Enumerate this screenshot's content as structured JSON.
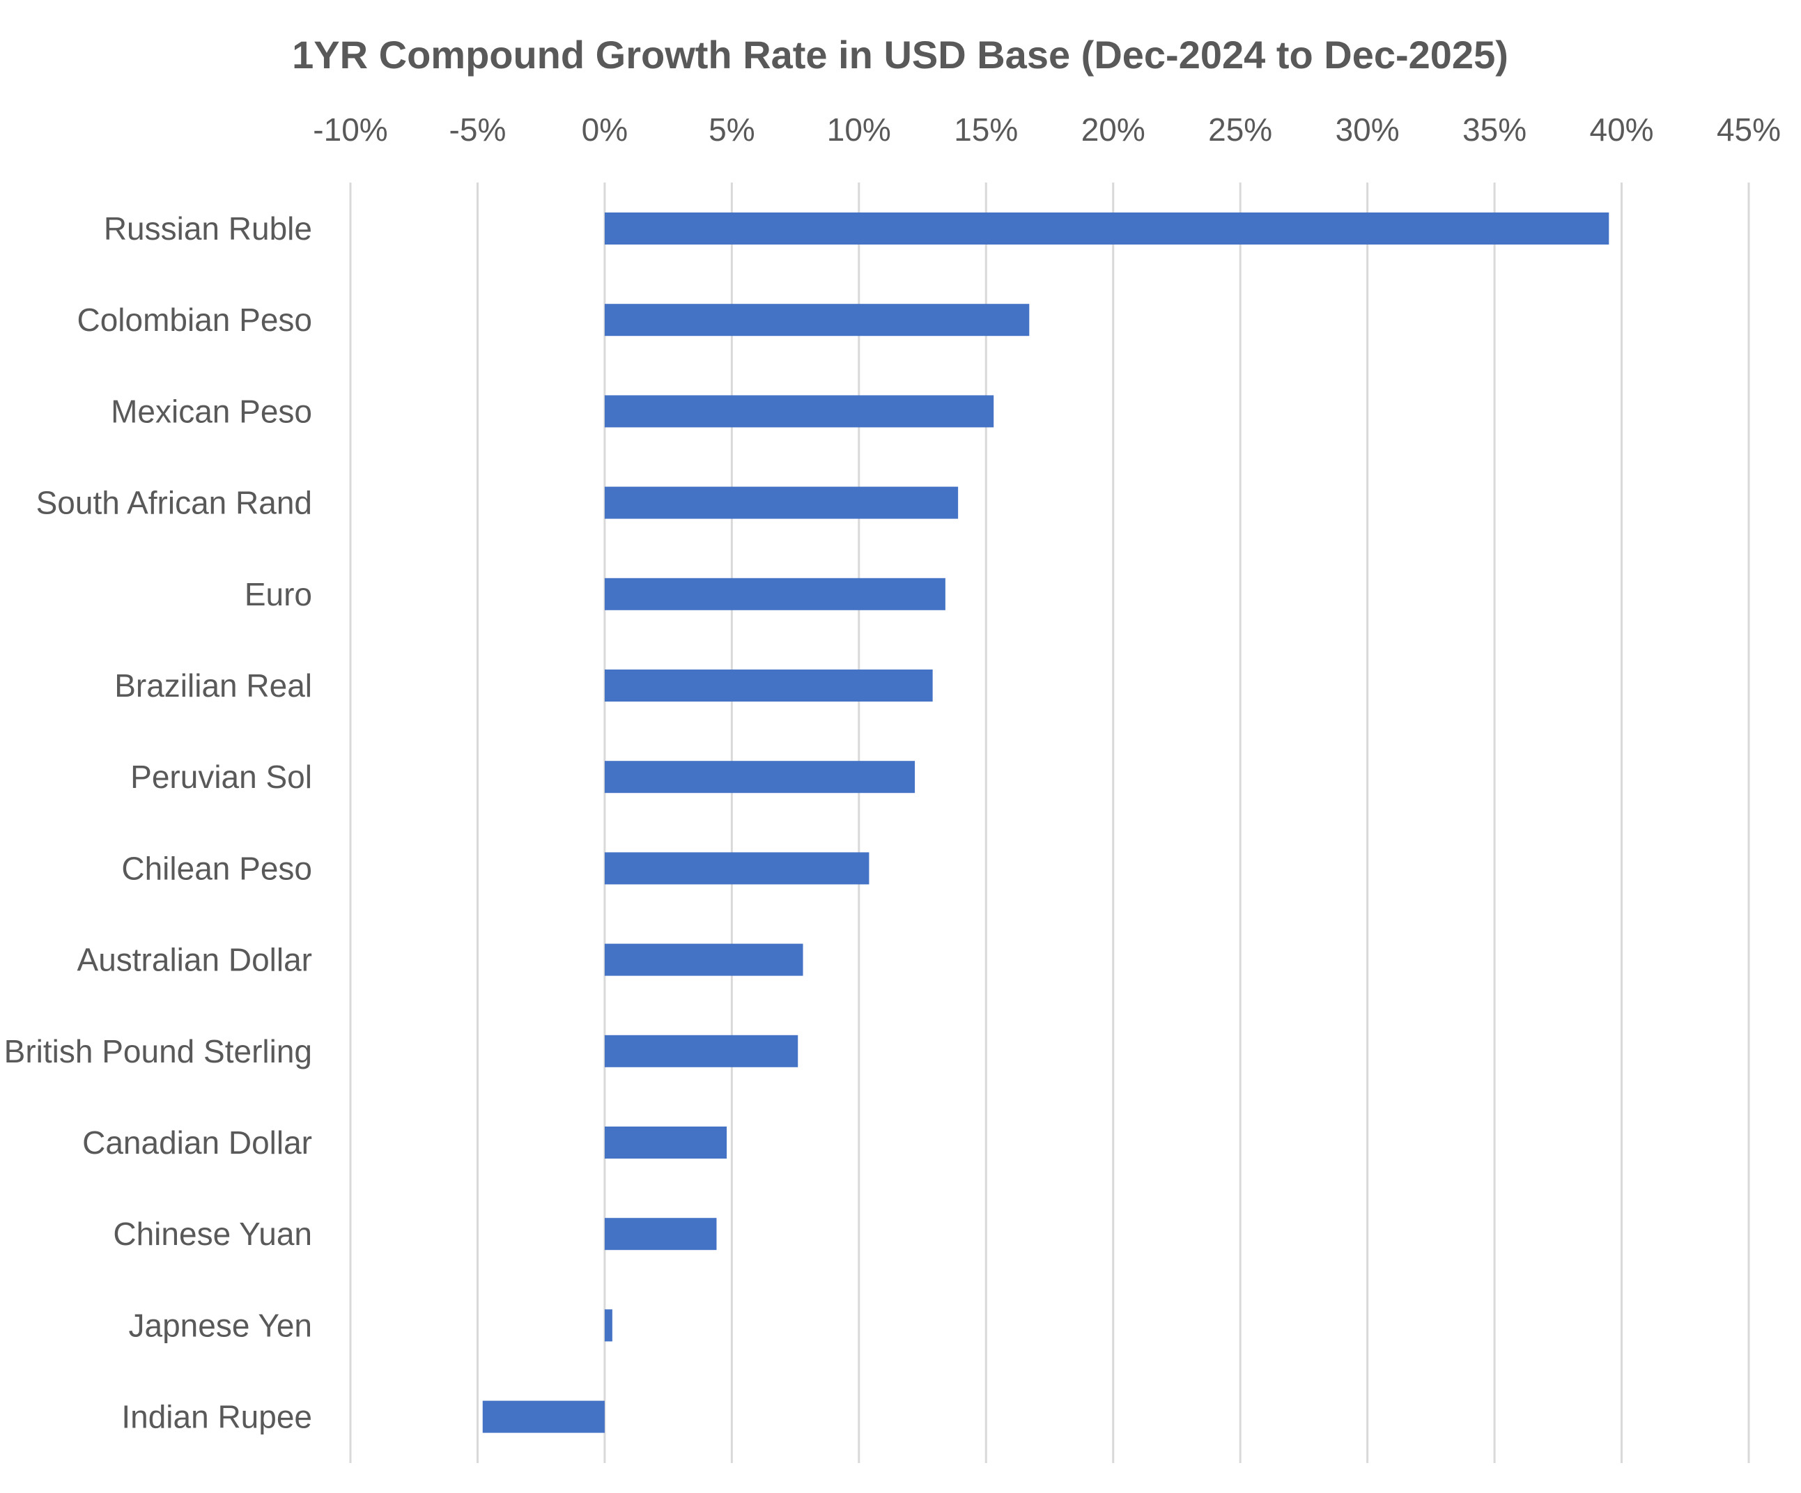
{
  "chart_data": {
    "type": "bar",
    "orientation": "horizontal",
    "title": "1YR Compound Growth Rate in USD Base (Dec-2024 to Dec-2025)",
    "xlabel": "",
    "ylabel": "",
    "xlim": [
      -10,
      45
    ],
    "x_ticks": [
      -10,
      -5,
      0,
      5,
      10,
      15,
      20,
      25,
      30,
      35,
      40,
      45
    ],
    "x_tick_labels": [
      "-10%",
      "-5%",
      "0%",
      "5%",
      "10%",
      "15%",
      "20%",
      "25%",
      "30%",
      "35%",
      "40%",
      "45%"
    ],
    "x_axis_position": "top",
    "grid": true,
    "legend": "none",
    "categories": [
      "Russian Ruble",
      "Colombian Peso",
      "Mexican Peso",
      "South African Rand",
      "Euro",
      "Brazilian Real",
      "Peruvian Sol",
      "Chilean Peso",
      "Australian Dollar",
      "British Pound Sterling",
      "Canadian Dollar",
      "Chinese Yuan",
      "Japnese Yen",
      "Indian Rupee"
    ],
    "values": [
      39.5,
      16.7,
      15.3,
      13.9,
      13.4,
      12.9,
      12.2,
      10.4,
      7.8,
      7.6,
      4.8,
      4.4,
      0.3,
      -4.8
    ],
    "bar_color": "#4472c4"
  }
}
